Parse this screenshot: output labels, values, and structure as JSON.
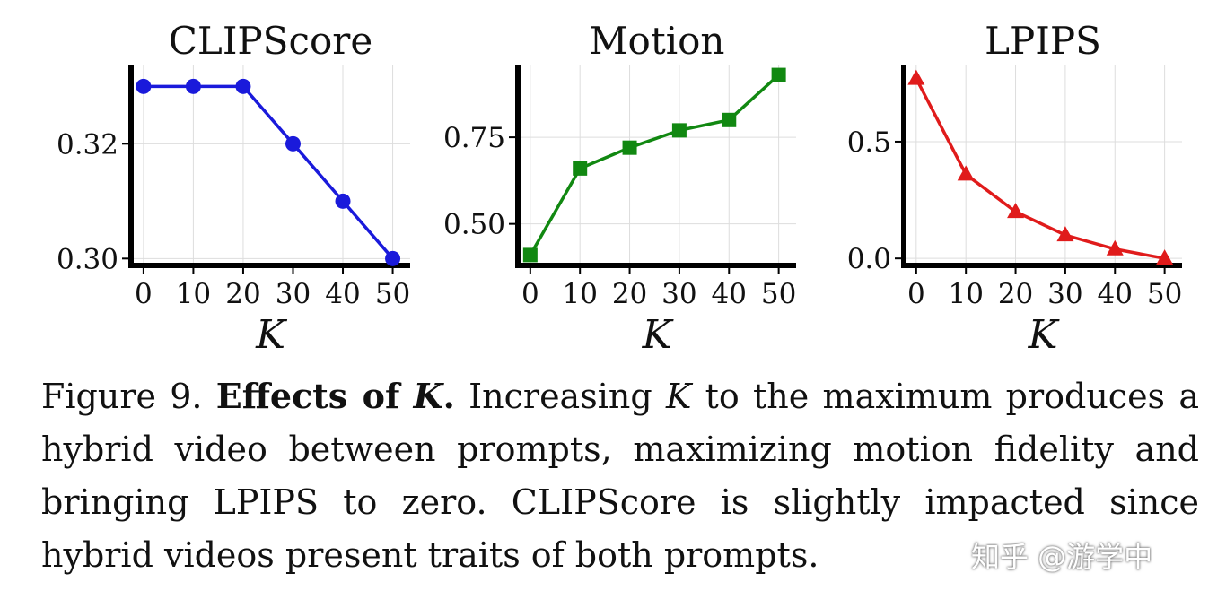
{
  "chart_data": [
    {
      "type": "line",
      "title": "CLIPScore",
      "xlabel": "K",
      "ylabel": "",
      "x": [
        0,
        10,
        20,
        30,
        40,
        50
      ],
      "xticks": [
        "0",
        "10",
        "20",
        "30",
        "40",
        "50"
      ],
      "yticks": [
        0.3,
        0.32
      ],
      "ytick_labels": [
        "0.30",
        "0.32"
      ],
      "ylim": [
        0.2988,
        0.3338
      ],
      "xlim": [
        -2.5,
        53.5
      ],
      "grid": true,
      "color": "#1a1adb",
      "marker": "circle",
      "series": [
        {
          "values": [
            0.33,
            0.33,
            0.33,
            0.32,
            0.31,
            0.3
          ]
        }
      ]
    },
    {
      "type": "line",
      "title": "Motion",
      "xlabel": "K",
      "ylabel": "",
      "x": [
        0,
        10,
        20,
        30,
        40,
        50
      ],
      "xticks": [
        "0",
        "10",
        "20",
        "30",
        "40",
        "50"
      ],
      "yticks": [
        0.5,
        0.75
      ],
      "ytick_labels": [
        "0.50",
        "0.75"
      ],
      "ylim": [
        0.38,
        0.96
      ],
      "xlim": [
        -2.5,
        53.5
      ],
      "grid": true,
      "color": "#118811",
      "marker": "square",
      "series": [
        {
          "values": [
            0.41,
            0.66,
            0.72,
            0.77,
            0.8,
            0.93
          ]
        }
      ]
    },
    {
      "type": "line",
      "title": "LPIPS",
      "xlabel": "K",
      "ylabel": "",
      "x": [
        0,
        10,
        20,
        30,
        40,
        50
      ],
      "xticks": [
        "0",
        "10",
        "20",
        "30",
        "40",
        "50"
      ],
      "yticks": [
        0.0,
        0.5
      ],
      "ytick_labels": [
        "0.0",
        "0.5"
      ],
      "ylim": [
        -0.03,
        0.83
      ],
      "xlim": [
        -2.5,
        53.5
      ],
      "grid": true,
      "color": "#e01b1b",
      "marker": "triangle",
      "series": [
        {
          "values": [
            0.77,
            0.36,
            0.2,
            0.1,
            0.04,
            0.0
          ]
        }
      ]
    }
  ],
  "caption": {
    "label": "Figure 9.",
    "bold_prefix": "Effects of",
    "bold_var": "K",
    "period": ".",
    "text_before_var": "Increasing",
    "var": "K",
    "text_after_var": "to the maximum produces a hybrid video between prompts, maximizing motion fidelity and bringing LPIPS to zero. CLIPScore is slightly impacted since hybrid videos present traits of both prompts."
  },
  "watermark": "知乎 @游学中"
}
